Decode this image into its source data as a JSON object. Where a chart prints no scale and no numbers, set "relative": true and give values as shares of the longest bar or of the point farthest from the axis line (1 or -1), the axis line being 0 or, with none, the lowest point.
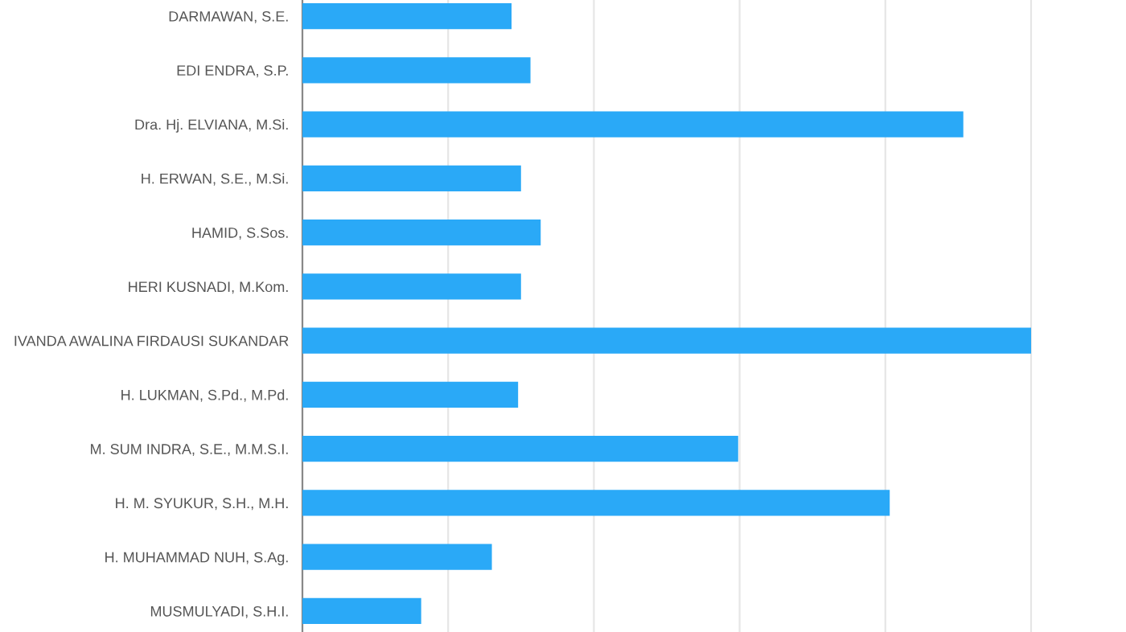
{
  "chart_data": {
    "type": "bar",
    "orientation": "horizontal",
    "relative": true,
    "grid": "x",
    "color": "#2aa9f7",
    "categories": [
      "DARMAWAN, S.E.",
      "EDI ENDRA, S.P.",
      "Dra. Hj. ELVIANA, M.Si.",
      "H. ERWAN, S.E., M.Si.",
      "HAMID, S.Sos.",
      "HERI KUSNADI, M.Kom.",
      "IVANDA AWALINA FIRDAUSI SUKANDAR",
      "H. LUKMAN, S.Pd., M.Pd.",
      "M. SUM INDRA, S.E., M.M.S.I.",
      "H. M. SYUKUR, S.H., M.H.",
      "H. MUHAMMAD NUH, S.Ag.",
      "MUSMULYADI, S.H.I."
    ],
    "values": [
      0.287,
      0.313,
      0.907,
      0.3,
      0.327,
      0.3,
      1,
      0.296,
      0.598,
      0.806,
      0.26,
      0.163
    ]
  }
}
